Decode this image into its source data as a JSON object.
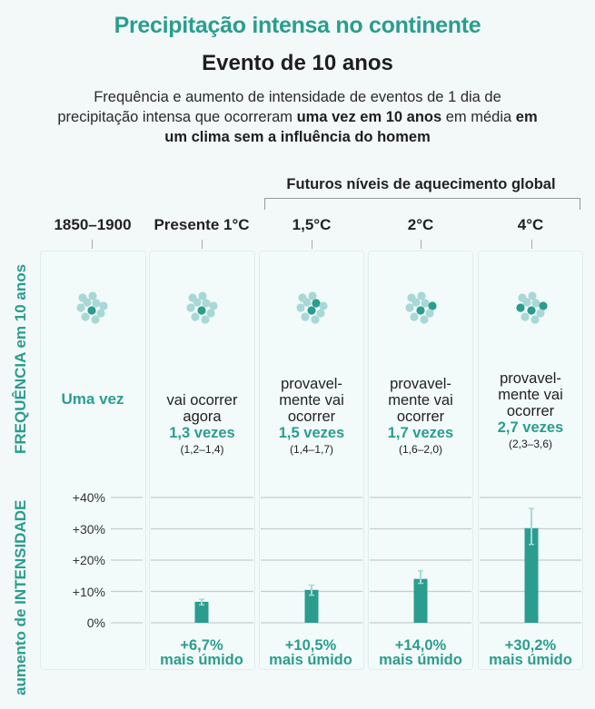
{
  "header": {
    "title": "Precipitação intensa no continente",
    "subtitle": "Evento de 10 anos",
    "description_parts": [
      "Frequência e aumento de intensidade de eventos de 1 dia de precipitação intensa que ocorreram ",
      "uma vez em 10 anos",
      " em média ",
      "em um clima sem a influência do homem"
    ]
  },
  "future_label": "Futuros níveis de aquecimento global",
  "row_labels": {
    "frequency_bold": "FREQUÊNCIA",
    "frequency_rest": " em 10 anos",
    "intensity_rest": "aumento de ",
    "intensity_bold": "INTENSIDADE"
  },
  "colors": {
    "accent": "#2a9d8f",
    "light_dot": "#a8d8d6",
    "error_bar": "#a6d9d4",
    "grid": "#c8cccc"
  },
  "chart_data": {
    "type": "bar",
    "title": "Precipitação intensa no continente — Evento de 10 anos",
    "categories": [
      "1850–1900",
      "Presente 1°C",
      "1,5°C",
      "2°C",
      "4°C"
    ],
    "frequency": {
      "label": "FREQUÊNCIA em 10 anos",
      "dots_total": 10,
      "dots_highlighted": [
        1,
        1,
        2,
        2,
        3
      ],
      "texts": [
        {
          "lead": "",
          "value": "Uma vez",
          "range": ""
        },
        {
          "lead": [
            "vai ocorrer",
            "agora"
          ],
          "value": "1,3 vezes",
          "range": "(1,2–1,4)"
        },
        {
          "lead": [
            "provavel-",
            "mente vai",
            "ocorrer"
          ],
          "value": "1,5 vezes",
          "range": "(1,4–1,7)"
        },
        {
          "lead": [
            "provavel-",
            "mente vai",
            "ocorrer"
          ],
          "value": "1,7 vezes",
          "range": "(1,6–2,0)"
        },
        {
          "lead": [
            "provavel-",
            "mente vai",
            "ocorrer"
          ],
          "value": "2,7 vezes",
          "range": "(2,3–3,6)"
        }
      ]
    },
    "intensity": {
      "ylabel": "aumento de INTENSIDADE",
      "ylim": [
        0,
        40
      ],
      "yticks": [
        0,
        10,
        20,
        30,
        40
      ],
      "ytick_labels": [
        "0%",
        "+10%",
        "+20%",
        "+30%",
        "+40%"
      ],
      "grid": true,
      "values": [
        null,
        6.7,
        10.5,
        14.0,
        30.2
      ],
      "error_low": [
        null,
        5.7,
        8.8,
        12.6,
        25.0
      ],
      "error_high": [
        null,
        7.5,
        12.0,
        16.6,
        36.5
      ],
      "labels": [
        null,
        {
          "value": "+6,7%",
          "unit": "mais úmido"
        },
        {
          "value": "+10,5%",
          "unit": "mais úmido"
        },
        {
          "value": "+14,0%",
          "unit": "mais úmido"
        },
        {
          "value": "+30,2%",
          "unit": "mais úmido"
        }
      ]
    }
  }
}
